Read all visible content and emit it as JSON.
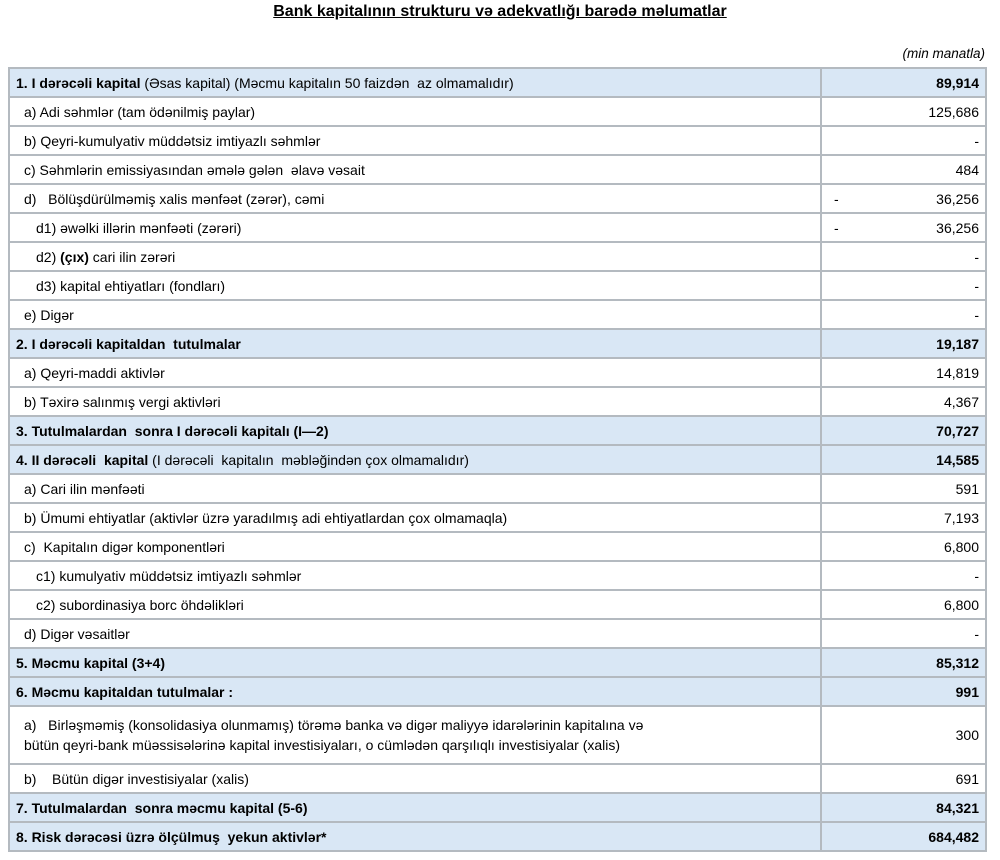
{
  "title": "Bank kapitalının strukturu və adekvatlığı barədə məlumatlar",
  "unit_note": "(min manatla)",
  "colors": {
    "section_row_bg": "#d9e7f5",
    "table_border": "#b4bac0",
    "text": "#000000",
    "page_bg": "#ffffff"
  },
  "table": {
    "rows": [
      {
        "bold": "1. I dərəcəli kapital",
        "rest": " (Əsas kapital) (Məcmu kapitalın 50 faizdən  az olmamalıdır)",
        "value": "89,914"
      },
      {
        "pre": "a) Adi səhmlər (tam ödənilmiş paylar)",
        "value": "125,686"
      },
      {
        "pre": "b) Qeyri-kumulyativ müddətsiz imtiyazlı səhmlər",
        "value": "-"
      },
      {
        "pre": "c) Səhmlərin emissiyasından əmələ gələn  əlavə vəsait",
        "value": "484"
      },
      {
        "pre": "d)   Bölüşdürülməmiş xalis mənfəət (zərər), cəmi",
        "neg": "-",
        "value": "36,256"
      },
      {
        "pre": "d1) əwəlki illərin mənfəəti (zərəri)",
        "neg": "-",
        "value": "36,256"
      },
      {
        "pre": "d2) ",
        "bold": "(çıx)",
        "rest": " cari ilin zərəri",
        "value": "-"
      },
      {
        "pre": "d3) kapital ehtiyatları (fondları)",
        "value": "-"
      },
      {
        "pre": "e) Digər",
        "value": "-"
      },
      {
        "bold": "2. I dərəcəli kapitaldan  tutulmalar",
        "value": "19,187"
      },
      {
        "pre": "a) Qeyri-maddi aktivlər",
        "value": "14,819"
      },
      {
        "pre": "b) Təxirə salınmış vergi aktivləri",
        "value": "4,367"
      },
      {
        "bold": "3. Tutulmalardan  sonra I dərəcəli kapitalı (I—2)",
        "value": "70,727"
      },
      {
        "bold": "4. II dərəcəli  kapital",
        "rest": " (I dərəcəli  kapitalın  məbləğindən çox olmamalıdır)",
        "value": "14,585"
      },
      {
        "pre": "a) Cari ilin mənfəəti",
        "value": "591"
      },
      {
        "pre": "b) Ümumi ehtiyatlar (aktivlər üzrə yaradılmış adi ehtiyatlardan çox olmamaqla)",
        "value": "7,193"
      },
      {
        "pre": "c)  Kapitalın digər komponentləri",
        "value": "6,800"
      },
      {
        "pre": "c1) kumulyativ müddətsiz imtiyazlı səhmlər",
        "value": "-"
      },
      {
        "pre": "c2) subordinasiya borc öhdəlikləri",
        "value": "6,800"
      },
      {
        "pre": "d) Digər vəsaitlər",
        "value": "-"
      },
      {
        "bold": "5. Məcmu kapital (3+4)",
        "value": "85,312"
      },
      {
        "bold": "6. Məcmu kapitaldan tutulmalar :",
        "value": "991"
      },
      {
        "pre": "a)   Birləşməmiş (konsolidasiya olunmamış) törəmə banka və digər maliyyə idarələrinin kapitalına və\nbütün qeyri-bank müəssisələrinə kapital investisiyaları, o cümlədən qarşılıqlı investisiyalar (xalis)",
        "value": "300"
      },
      {
        "pre": "b)    Bütün digər investisiyalar (xalis)",
        "value": "691"
      },
      {
        "bold": "7. Tutulmalardan  sonra məcmu kapital (5-6)",
        "value": "84,321"
      },
      {
        "bold": "8. Risk dərəcəsi üzrə ölçülmuş  yekun aktivlər*",
        "value": "684,482"
      }
    ]
  }
}
